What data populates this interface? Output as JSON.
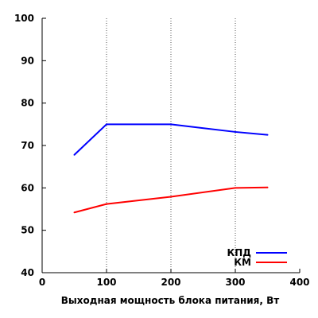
{
  "chart_data": {
    "type": "line",
    "title": "",
    "xlabel": "Выходная мощность блока питания, Вт",
    "ylabel": "",
    "xlim": [
      0,
      400
    ],
    "ylim": [
      40,
      100
    ],
    "xticks": [
      0,
      100,
      200,
      300,
      400
    ],
    "yticks": [
      40,
      50,
      60,
      70,
      80,
      90,
      100
    ],
    "grid": {
      "x": true,
      "y": false
    },
    "legend": "bottom-right",
    "x": [
      50,
      100,
      200,
      300,
      350
    ],
    "series": [
      {
        "name": "КПД",
        "color": "#0000ff",
        "values": [
          67.8,
          75.0,
          75.0,
          73.2,
          72.5
        ]
      },
      {
        "name": "КМ",
        "color": "#ff0000",
        "values": [
          54.2,
          56.2,
          57.9,
          60.0,
          60.1
        ]
      }
    ]
  }
}
